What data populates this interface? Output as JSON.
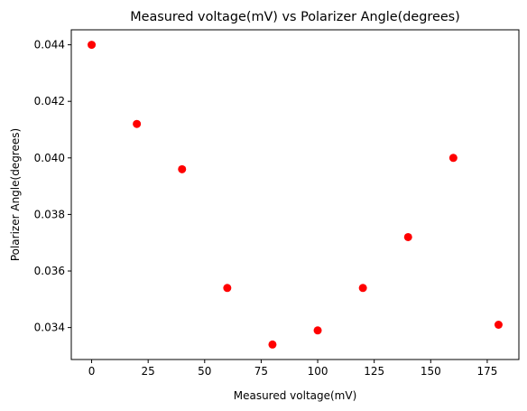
{
  "chart_data": {
    "type": "scatter",
    "title": "Measured voltage(mV) vs Polarizer Angle(degrees)",
    "xlabel": "Measured voltage(mV)",
    "ylabel": "Polarizer Angle(degrees)",
    "xlim": [
      -9,
      189
    ],
    "ylim": [
      0.03287,
      0.04453
    ],
    "xticks": [
      0,
      25,
      50,
      75,
      100,
      125,
      150,
      175
    ],
    "xtick_labels": [
      "0",
      "25",
      "50",
      "75",
      "100",
      "125",
      "150",
      "175"
    ],
    "yticks": [
      0.034,
      0.036,
      0.038,
      0.04,
      0.042,
      0.044
    ],
    "ytick_labels": [
      "0.034",
      "0.036",
      "0.038",
      "0.040",
      "0.042",
      "0.044"
    ],
    "grid": false,
    "marker_color": "#ff0000",
    "series": [
      {
        "x": [
          0,
          20,
          40,
          60,
          80,
          100,
          120,
          140,
          160,
          180
        ],
        "y": [
          0.044,
          0.0412,
          0.0396,
          0.0354,
          0.0334,
          0.0339,
          0.0354,
          0.0372,
          0.04,
          0.0341
        ]
      }
    ]
  }
}
